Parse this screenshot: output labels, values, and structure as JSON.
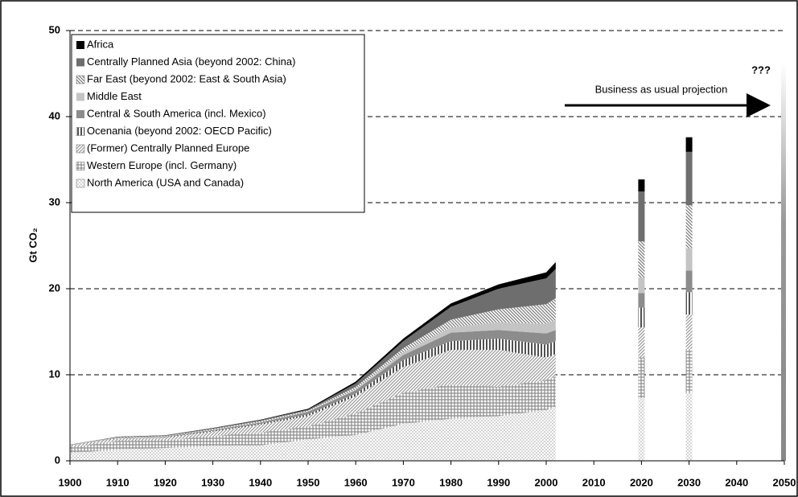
{
  "chart_data": {
    "type": "area",
    "y_label": "Gt CO₂",
    "x": [
      1900,
      1910,
      1920,
      1930,
      1940,
      1950,
      1960,
      1970,
      1980,
      1990,
      2000,
      2002
    ],
    "projection_x": [
      2020,
      2030
    ],
    "series": [
      {
        "name": "North America (USA and Canada)",
        "color": "#d4d4d4",
        "pattern": "dots",
        "values": [
          0.9,
          1.3,
          1.5,
          1.7,
          1.8,
          2.5,
          3.0,
          4.3,
          4.9,
          5.2,
          5.9,
          6.3
        ],
        "projection": [
          7.3,
          7.9
        ]
      },
      {
        "name": "Western Europe (incl. Germany)",
        "color": "#8a8a8a",
        "pattern": "grid",
        "values": [
          0.7,
          1.0,
          0.9,
          1.2,
          1.5,
          1.5,
          2.5,
          3.6,
          4.0,
          3.4,
          3.5,
          3.5
        ],
        "projection": [
          4.7,
          5.1
        ]
      },
      {
        "name": "(Former) Centrally Planned Europe",
        "color": "#9a9a9a",
        "pattern": "diag",
        "values": [
          0.2,
          0.3,
          0.3,
          0.5,
          0.9,
          1.2,
          2.0,
          3.0,
          4.0,
          4.3,
          2.6,
          2.6
        ],
        "projection": [
          3.5,
          4.0
        ]
      },
      {
        "name": "Ocenania (beyond 2002: OECD Pacific)",
        "color": "#505050",
        "pattern": "vlines",
        "values": [
          0.02,
          0.04,
          0.05,
          0.08,
          0.1,
          0.2,
          0.3,
          0.8,
          1.0,
          1.3,
          1.5,
          1.5
        ],
        "projection": [
          2.3,
          2.6
        ]
      },
      {
        "name": "Central & South America (incl. Mexico)",
        "color": "#8c8c8c",
        "pattern": "solid",
        "values": [
          0.01,
          0.03,
          0.05,
          0.1,
          0.15,
          0.3,
          0.4,
          0.6,
          1.0,
          1.0,
          1.3,
          1.3
        ],
        "projection": [
          1.7,
          2.5
        ]
      },
      {
        "name": "Middle East",
        "color": "#c4c4c4",
        "pattern": "solid",
        "values": [
          0.0,
          0.01,
          0.01,
          0.02,
          0.03,
          0.05,
          0.1,
          0.3,
          0.6,
          0.9,
          1.1,
          1.2
        ],
        "projection": [
          1.8,
          2.6
        ]
      },
      {
        "name": "Far East (beyond 2002: East & South Asia)",
        "color": "#7a7a7a",
        "pattern": "hatch",
        "values": [
          0.02,
          0.05,
          0.08,
          0.1,
          0.15,
          0.1,
          0.3,
          0.5,
          0.9,
          1.5,
          2.3,
          2.5
        ],
        "projection": [
          4.2,
          5.0
        ]
      },
      {
        "name": "Centrally Planned Asia (beyond 2002: China)",
        "color": "#6e6e6e",
        "pattern": "solid",
        "values": [
          0.02,
          0.05,
          0.05,
          0.08,
          0.1,
          0.1,
          0.4,
          0.8,
          1.5,
          2.4,
          3.0,
          3.4
        ],
        "projection": [
          5.8,
          6.2
        ]
      },
      {
        "name": "Africa",
        "color": "#000000",
        "pattern": "solid",
        "values": [
          0.01,
          0.02,
          0.03,
          0.04,
          0.05,
          0.1,
          0.2,
          0.3,
          0.4,
          0.5,
          0.7,
          0.8
        ],
        "projection": [
          1.4,
          1.7
        ]
      }
    ],
    "annotations": [
      "Business as usual projection",
      "???"
    ],
    "xlim": [
      1900,
      2050
    ],
    "xticks": [
      1900,
      1910,
      1920,
      1930,
      1940,
      1950,
      1960,
      1970,
      1980,
      1990,
      2000,
      2010,
      2020,
      2030,
      2040,
      2050
    ],
    "ylim": [
      0,
      50
    ],
    "yticks": [
      0,
      10,
      20,
      30,
      40,
      50
    ],
    "grid": true,
    "legend": "upper left"
  }
}
